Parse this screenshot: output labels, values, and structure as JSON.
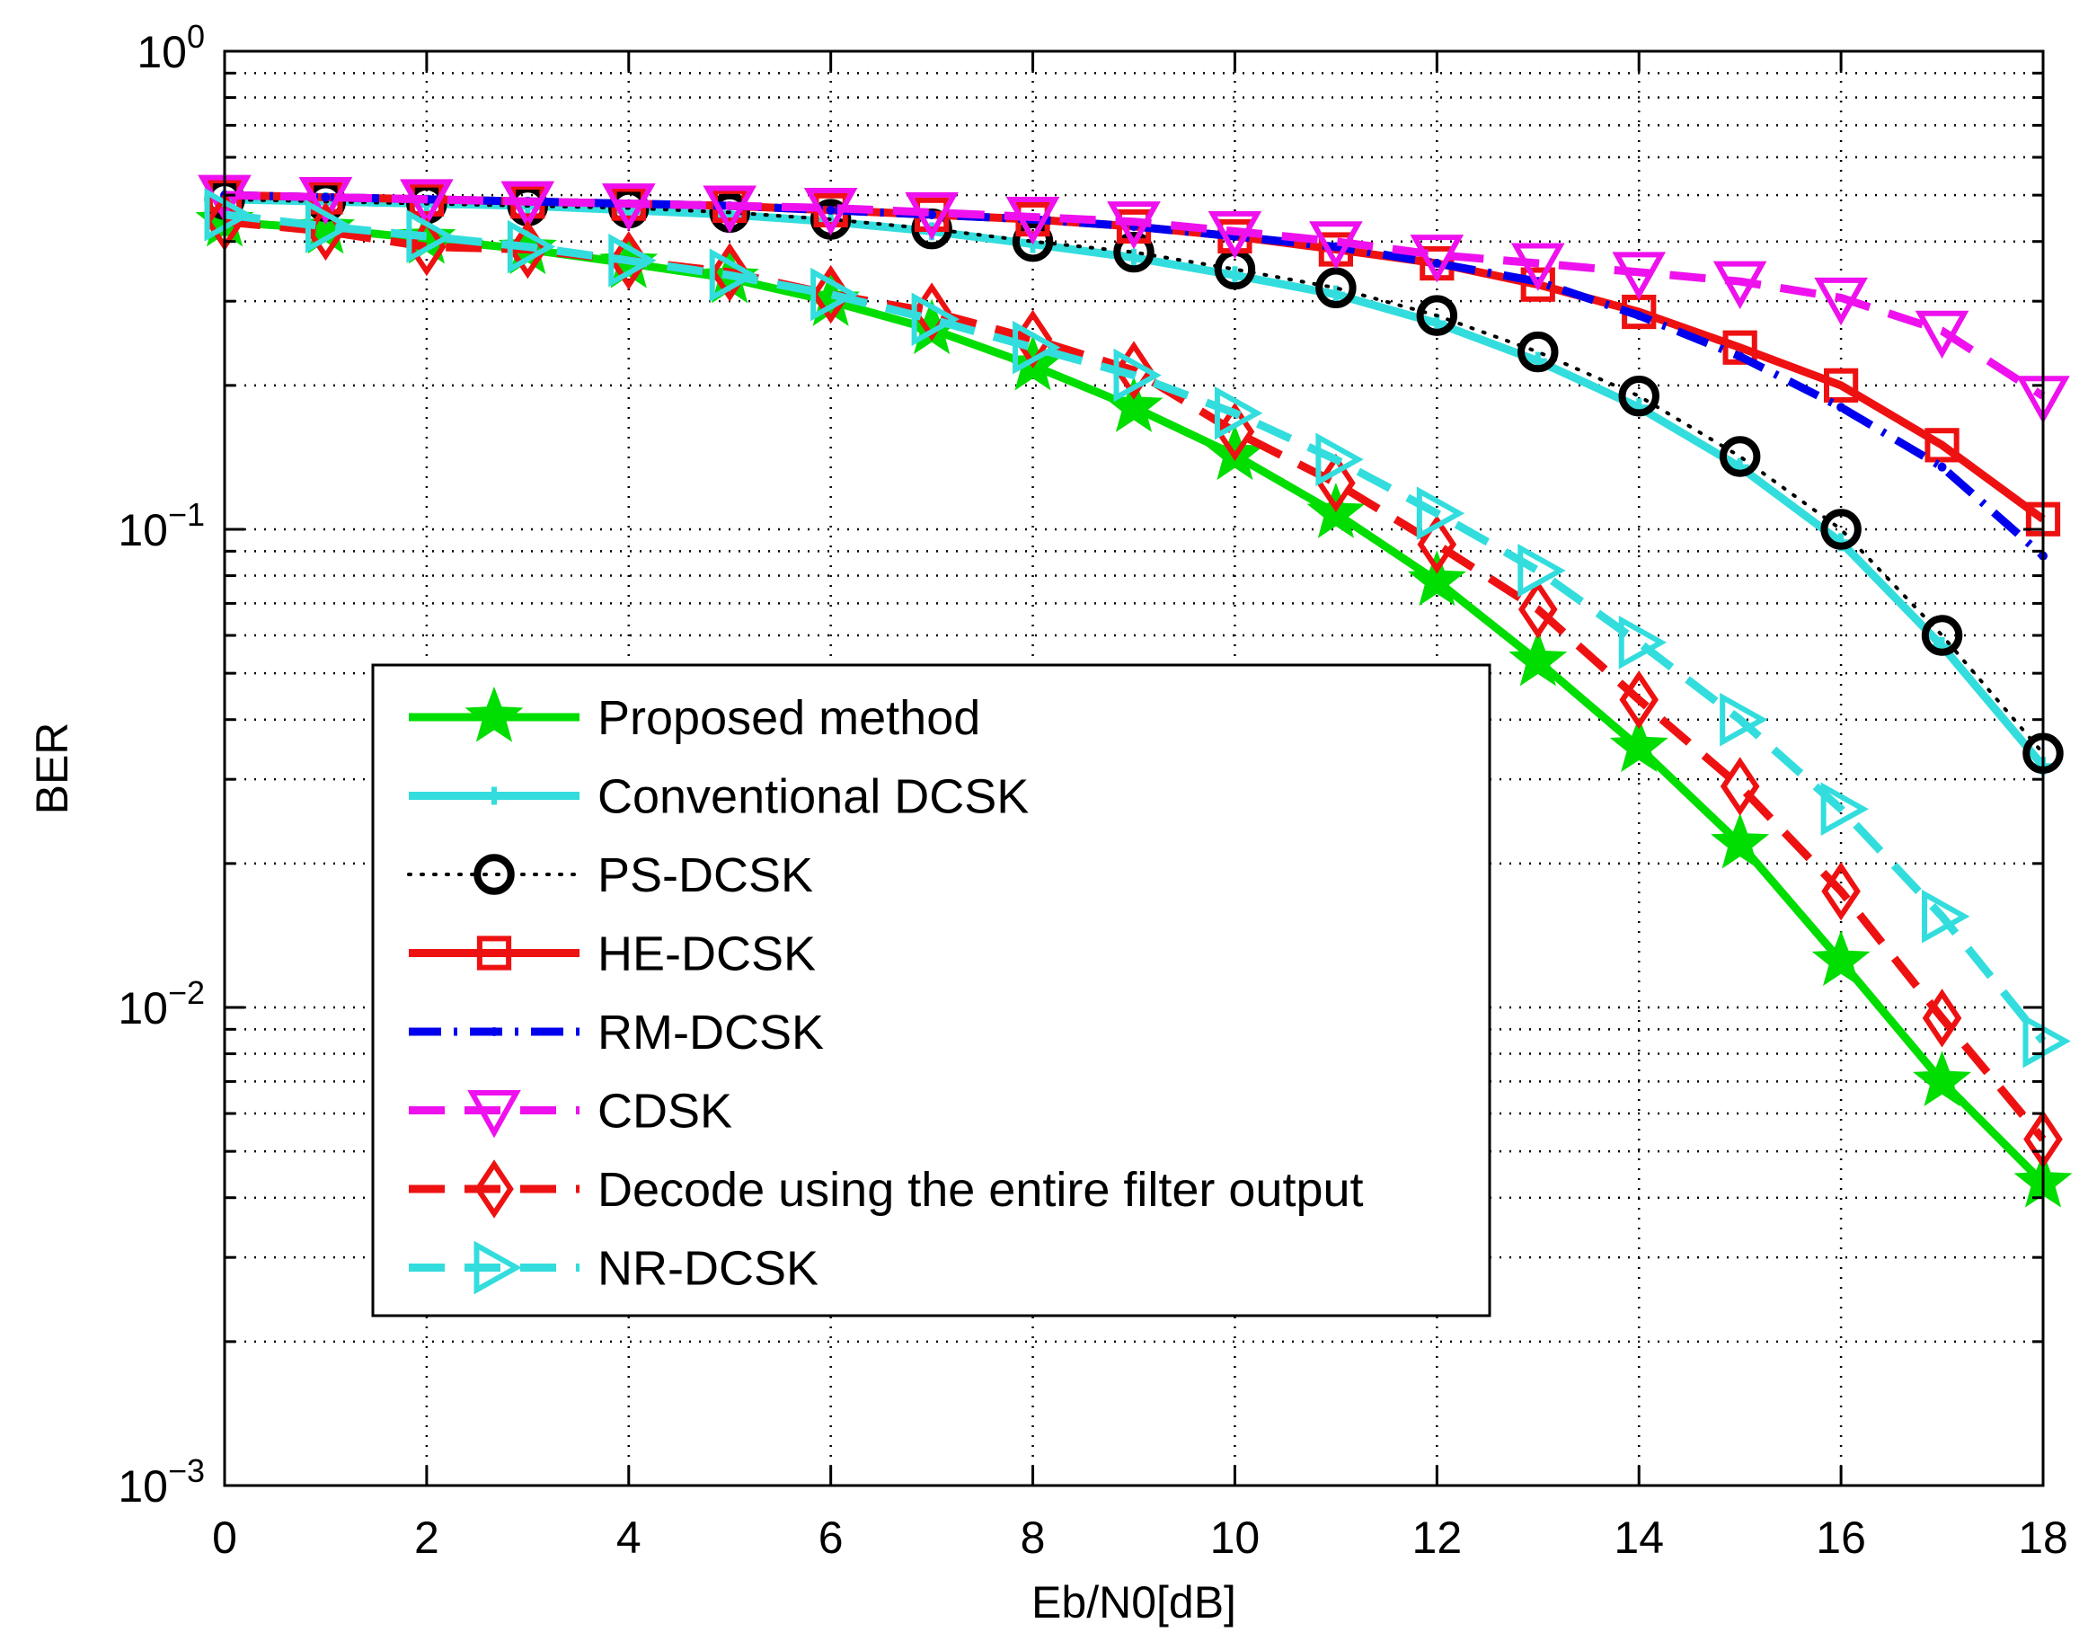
{
  "chart_data": {
    "type": "line",
    "title": "",
    "xlabel": "Eb/N0[dB]",
    "ylabel": "BER",
    "xlim": [
      0,
      18
    ],
    "ylim": [
      0.001,
      1
    ],
    "yscale": "log",
    "grid": true,
    "legend_position": "center-left",
    "x_ticks": [
      "0",
      "2",
      "4",
      "6",
      "8",
      "10",
      "12",
      "14",
      "16",
      "18"
    ],
    "y_ticks": [
      {
        "base": "10",
        "exp": "0"
      },
      {
        "base": "10",
        "exp": "−1"
      },
      {
        "base": "10",
        "exp": "−2"
      },
      {
        "base": "10",
        "exp": "−3"
      }
    ],
    "x": [
      0,
      1,
      2,
      3,
      4,
      5,
      6,
      7,
      8,
      9,
      10,
      11,
      12,
      13,
      14,
      15,
      16,
      17,
      18
    ],
    "series": [
      {
        "name": "Proposed method",
        "color": "#00dd00",
        "dash": "solid",
        "marker": "star",
        "values": [
          0.44,
          0.425,
          0.405,
          0.385,
          0.36,
          0.335,
          0.3,
          0.262,
          0.22,
          0.18,
          0.143,
          0.108,
          0.078,
          0.053,
          0.035,
          0.022,
          0.0125,
          0.007,
          0.0043
        ]
      },
      {
        "name": "Conventional DCSK",
        "color": "#33dddd",
        "dash": "solid",
        "marker": "plus",
        "values": [
          0.49,
          0.485,
          0.48,
          0.475,
          0.465,
          0.455,
          0.44,
          0.42,
          0.395,
          0.37,
          0.34,
          0.31,
          0.27,
          0.225,
          0.18,
          0.135,
          0.094,
          0.057,
          0.032
        ]
      },
      {
        "name": "PS-DCSK",
        "color": "#000000",
        "dash": "dot",
        "marker": "circle",
        "values": [
          0.49,
          0.485,
          0.48,
          0.475,
          0.47,
          0.46,
          0.445,
          0.425,
          0.4,
          0.38,
          0.35,
          0.32,
          0.28,
          0.235,
          0.19,
          0.142,
          0.1,
          0.06,
          0.034
        ]
      },
      {
        "name": "HE-DCSK",
        "color": "#ee1111",
        "dash": "solid",
        "marker": "square",
        "values": [
          0.5,
          0.495,
          0.49,
          0.485,
          0.48,
          0.475,
          0.465,
          0.455,
          0.445,
          0.43,
          0.41,
          0.385,
          0.36,
          0.325,
          0.285,
          0.24,
          0.2,
          0.15,
          0.105
        ]
      },
      {
        "name": "RM-DCSK",
        "color": "#0000ee",
        "dash": "dashdot",
        "marker": "dot",
        "values": [
          0.5,
          0.495,
          0.49,
          0.485,
          0.48,
          0.475,
          0.465,
          0.455,
          0.445,
          0.43,
          0.41,
          0.39,
          0.36,
          0.33,
          0.28,
          0.23,
          0.18,
          0.135,
          0.088
        ]
      },
      {
        "name": "CDSK",
        "color": "#ee11ee",
        "dash": "dash",
        "marker": "triangle-down",
        "values": [
          0.5,
          0.495,
          0.49,
          0.485,
          0.48,
          0.475,
          0.47,
          0.46,
          0.45,
          0.44,
          0.42,
          0.4,
          0.375,
          0.36,
          0.345,
          0.33,
          0.305,
          0.26,
          0.19
        ]
      },
      {
        "name": "Decode using the entire filter output",
        "color": "#ee1111",
        "dash": "dash",
        "marker": "diamond",
        "values": [
          0.44,
          0.42,
          0.39,
          0.385,
          0.365,
          0.345,
          0.31,
          0.285,
          0.25,
          0.215,
          0.16,
          0.125,
          0.093,
          0.068,
          0.044,
          0.029,
          0.0175,
          0.0095,
          0.0053
        ]
      },
      {
        "name": "NR-DCSK",
        "color": "#33dddd",
        "dash": "dash",
        "marker": "triangle-right",
        "values": [
          0.455,
          0.43,
          0.41,
          0.39,
          0.365,
          0.34,
          0.31,
          0.275,
          0.24,
          0.21,
          0.175,
          0.14,
          0.108,
          0.082,
          0.058,
          0.04,
          0.026,
          0.0155,
          0.0085
        ]
      }
    ]
  }
}
